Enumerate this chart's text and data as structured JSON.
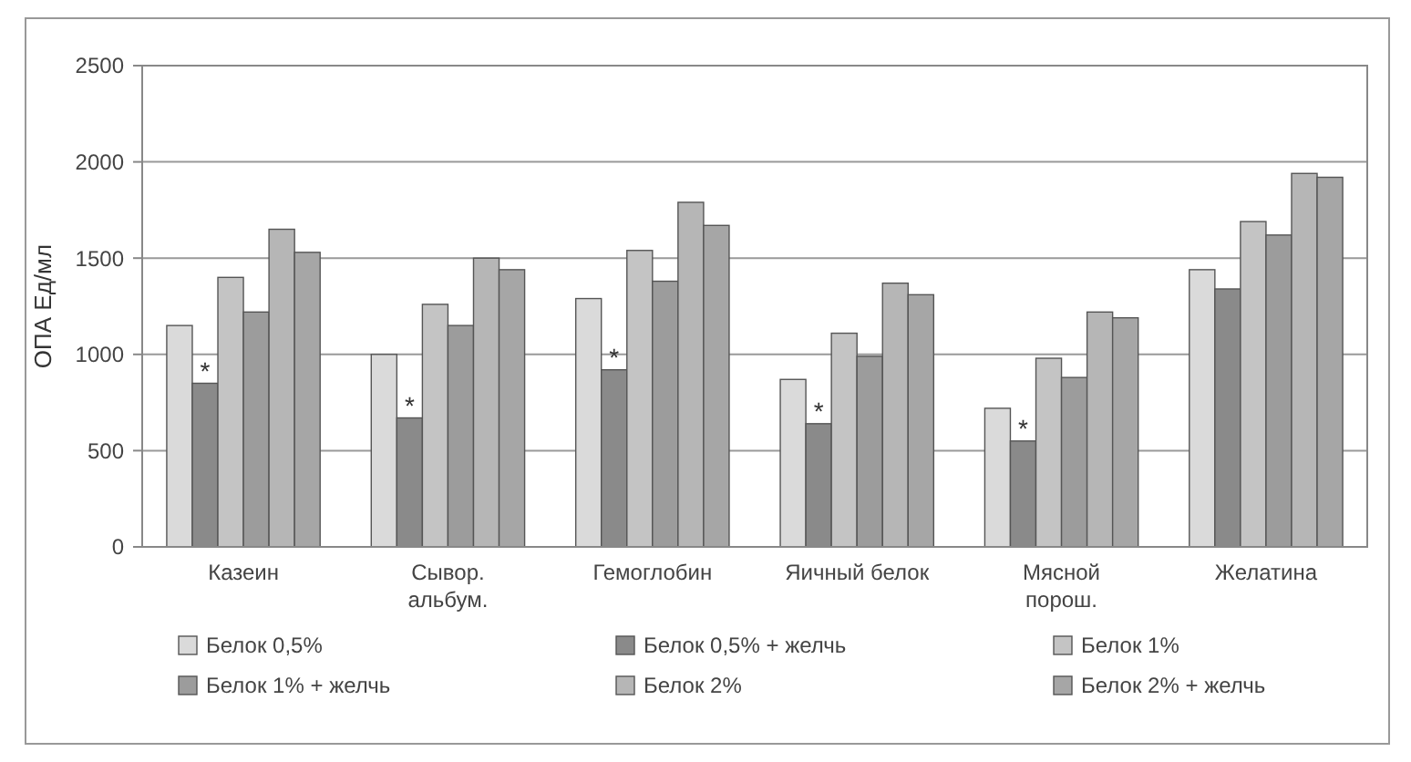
{
  "chart_data": {
    "type": "bar",
    "ylabel": "ОПА Ед/мл",
    "categories": [
      "Казеин",
      "Сывор. альбум.",
      "Гемоглобин",
      "Яичный белок",
      "Мясной порош.",
      "Желатина"
    ],
    "series": [
      {
        "name": "Белок 0,5%",
        "color": "#dadada",
        "values": [
          1150,
          1000,
          1290,
          870,
          720,
          1440
        ]
      },
      {
        "name": "Белок 0,5% + желчь",
        "color": "#8a8a8a",
        "values": [
          850,
          670,
          920,
          640,
          550,
          1340
        ]
      },
      {
        "name": "Белок 1%",
        "color": "#c4c4c4",
        "values": [
          1400,
          1260,
          1540,
          1110,
          980,
          1690
        ]
      },
      {
        "name": "Белок 1% + желчь",
        "color": "#9c9c9c",
        "values": [
          1220,
          1150,
          1380,
          990,
          880,
          1620
        ]
      },
      {
        "name": "Белок 2%",
        "color": "#b6b6b6",
        "values": [
          1650,
          1500,
          1790,
          1370,
          1220,
          1940
        ]
      },
      {
        "name": "Белок 2% + желчь",
        "color": "#a6a6a6",
        "values": [
          1530,
          1440,
          1670,
          1310,
          1190,
          1920
        ]
      }
    ],
    "ylim": [
      0,
      2500
    ],
    "yticks": [
      0,
      500,
      1000,
      1500,
      2000,
      2500
    ],
    "grid": "y",
    "legend": "bottom",
    "annotations": [
      {
        "text": "*",
        "x": "Казеин",
        "y": 960
      },
      {
        "text": "*",
        "x": "Сывор. альбум.",
        "y": 780
      },
      {
        "text": "*",
        "x": "Гемоглобин",
        "y": 1030
      },
      {
        "text": "*",
        "x": "Яичный белок",
        "y": 750
      },
      {
        "text": "*",
        "x": "Мясной порош.",
        "y": 660
      }
    ]
  }
}
